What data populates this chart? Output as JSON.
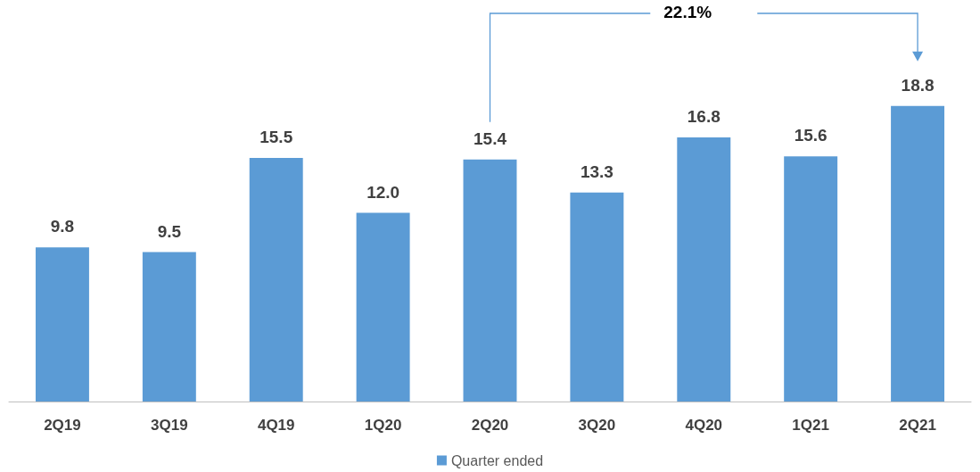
{
  "chart_data": {
    "type": "bar",
    "categories": [
      "2Q19",
      "3Q19",
      "4Q19",
      "1Q20",
      "2Q20",
      "3Q20",
      "4Q20",
      "1Q21",
      "2Q21"
    ],
    "series": [
      {
        "name": "Quarter ended",
        "color": "#5b9bd5",
        "values": [
          9.8,
          9.5,
          15.5,
          12.0,
          15.4,
          13.3,
          16.8,
          15.6,
          18.8
        ],
        "value_labels": [
          "9.8",
          "9.5",
          "15.5",
          "12.0",
          "15.4",
          "13.3",
          "16.8",
          "15.6",
          "18.8"
        ]
      }
    ],
    "annotations": [
      "22.1%"
    ],
    "legend": "bottom",
    "tick_labels": "x"
  }
}
